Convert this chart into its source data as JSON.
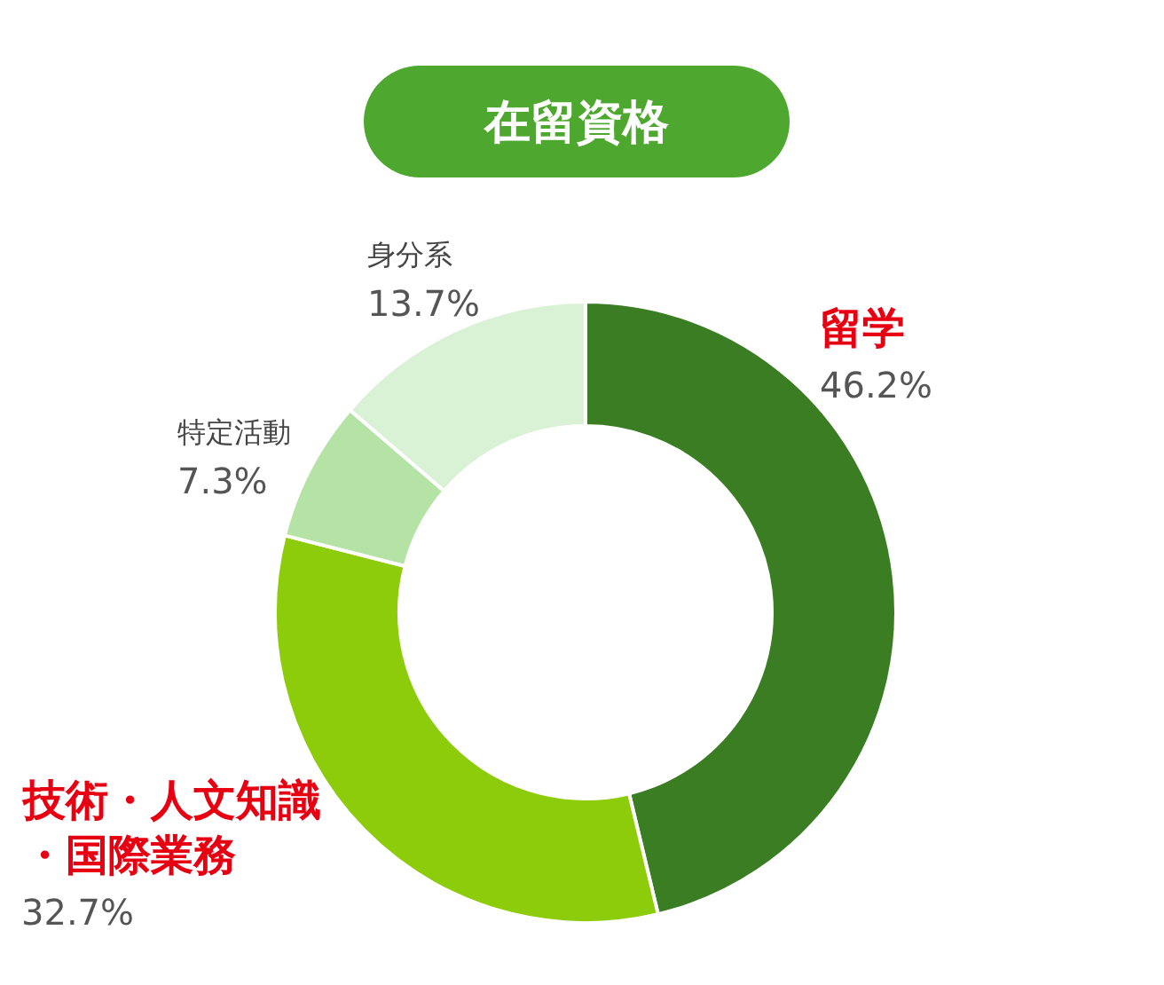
{
  "chart_data": {
    "type": "donut",
    "title": "在留資格",
    "categories": [
      "留学",
      "技術・人文知識・国際業務",
      "特定活動",
      "身分系"
    ],
    "values": [
      46.2,
      32.7,
      7.3,
      13.7
    ],
    "colors": [
      "#3a7d23",
      "#8dcc0a",
      "#b5e3a5",
      "#d9f2d5"
    ],
    "value_labels": [
      "46.2%",
      "32.7%",
      "7.3%",
      "13.7%"
    ]
  }
}
